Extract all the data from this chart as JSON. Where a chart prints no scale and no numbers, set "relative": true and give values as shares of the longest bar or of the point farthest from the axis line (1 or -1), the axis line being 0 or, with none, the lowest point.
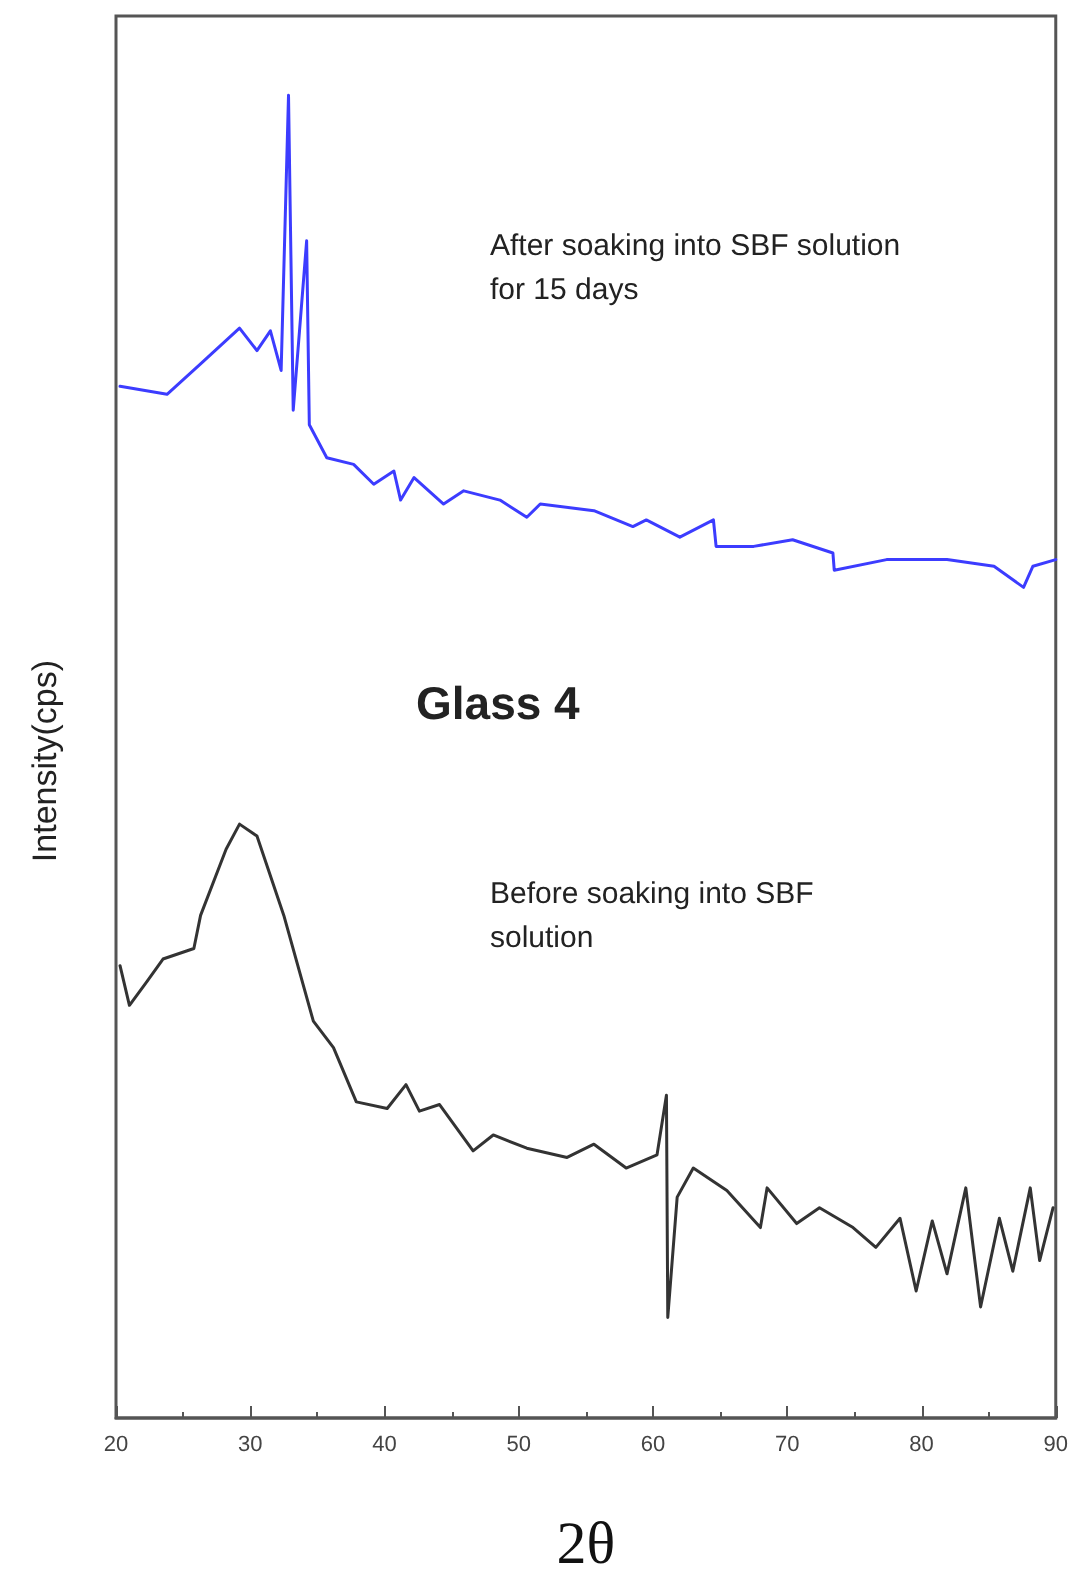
{
  "chart_data": {
    "type": "line",
    "relative": true,
    "xlabel": "2θ",
    "ylabel": "Intensity(cps)",
    "xlim": [
      20,
      90
    ],
    "xticks": [
      20,
      30,
      40,
      50,
      60,
      70,
      80,
      90
    ],
    "tick_labels": "x",
    "grid": false,
    "marker": "none",
    "line_style": "solid",
    "annotations": [
      "After soaking into SBF solution for 15 days",
      "Glass 4",
      "Before soaking into SBF solution"
    ],
    "series": [
      {
        "color": "#3c3cff",
        "x": [
          20.3,
          23.8,
          26.3,
          29.2,
          30.5,
          31.5,
          32.3,
          32.85,
          33.2,
          34.2,
          34.4,
          35.7,
          37.7,
          39.2,
          40.7,
          41.2,
          42.2,
          44.4,
          45.9,
          48.6,
          50.6,
          51.6,
          55.6,
          58.5,
          59.5,
          62.0,
          64.5,
          64.7,
          67.5,
          70.4,
          73.4,
          73.5,
          77.4,
          81.9,
          85.4,
          87.6,
          88.3,
          90
        ],
        "values": [
          0.78,
          0.774,
          0.797,
          0.824,
          0.807,
          0.822,
          0.792,
          1.0,
          0.762,
          0.89,
          0.751,
          0.726,
          0.721,
          0.706,
          0.716,
          0.694,
          0.711,
          0.691,
          0.701,
          0.694,
          0.681,
          0.691,
          0.686,
          0.674,
          0.679,
          0.666,
          0.679,
          0.659,
          0.659,
          0.664,
          0.654,
          0.641,
          0.649,
          0.649,
          0.644,
          0.628,
          0.644,
          0.649
        ]
      },
      {
        "color": "#333333",
        "x": [
          20.3,
          21.0,
          22.3,
          23.5,
          25.8,
          26.3,
          28.2,
          29.2,
          30.5,
          32.5,
          34.7,
          36.2,
          37.9,
          40.2,
          41.6,
          42.6,
          44.1,
          46.6,
          48.1,
          50.6,
          53.6,
          55.6,
          58.0,
          60.3,
          61.0,
          61.1,
          61.8,
          63.0,
          65.5,
          68.0,
          68.5,
          70.7,
          72.4,
          74.9,
          76.6,
          78.4,
          79.6,
          80.8,
          81.9,
          83.3,
          84.4,
          85.8,
          86.8,
          88.1,
          88.8,
          89.8
        ],
        "values": [
          0.342,
          0.312,
          0.33,
          0.347,
          0.355,
          0.38,
          0.43,
          0.449,
          0.44,
          0.38,
          0.3,
          0.28,
          0.239,
          0.234,
          0.252,
          0.232,
          0.237,
          0.202,
          0.214,
          0.204,
          0.197,
          0.207,
          0.189,
          0.199,
          0.244,
          0.076,
          0.167,
          0.189,
          0.172,
          0.144,
          0.174,
          0.147,
          0.159,
          0.144,
          0.129,
          0.151,
          0.096,
          0.149,
          0.109,
          0.174,
          0.084,
          0.151,
          0.111,
          0.174,
          0.119,
          0.159
        ]
      }
    ]
  }
}
